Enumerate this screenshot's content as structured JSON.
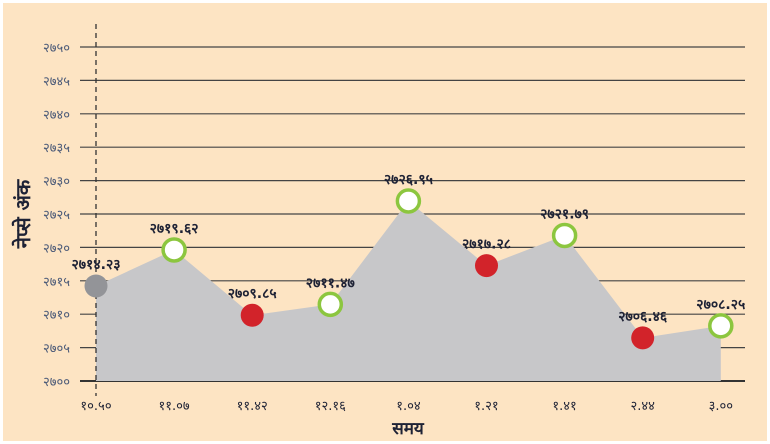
{
  "chart_data": {
    "type": "area",
    "title": "",
    "xlabel": "समय",
    "ylabel": "नेप्से अंक",
    "ylim": [
      2700,
      2750
    ],
    "yticks": [
      2700,
      2705,
      2710,
      2715,
      2720,
      2725,
      2730,
      2735,
      2740,
      2745,
      2750
    ],
    "ytick_labels": [
      "२७००",
      "२७०५",
      "२७१०",
      "२७१५",
      "२७२०",
      "२७२५",
      "२७३०",
      "२७३५",
      "२७४०",
      "२७४५",
      "२७५०"
    ],
    "categories": [
      "१०.५०",
      "११.०७",
      "११.४२",
      "१२.१६",
      "१.०४",
      "१.२१",
      "१.४१",
      "२.४४",
      "३.००"
    ],
    "values": [
      2714.23,
      2719.62,
      2709.85,
      2711.47,
      2726.95,
      2717.28,
      2721.79,
      2706.46,
      2708.25
    ],
    "data_labels": [
      "२७१४.२३",
      "२७१९.६२",
      "२७०९.८५",
      "२७११.४७",
      "२७२६.९५",
      "२७१७.२८",
      "२७२१.७९",
      "२७०६.४६",
      "२७०८.२५"
    ],
    "point_status": [
      "neutral",
      "up",
      "down",
      "up",
      "up",
      "down",
      "up",
      "down",
      "up"
    ],
    "grid": true,
    "colors": {
      "background": "#fde4c3",
      "fill": "#c7c7c9",
      "neutral": "#939498",
      "up": "#8cc63f",
      "down": "#d2232a",
      "tick_text": "#4b5a78",
      "text": "#1e2235"
    }
  }
}
